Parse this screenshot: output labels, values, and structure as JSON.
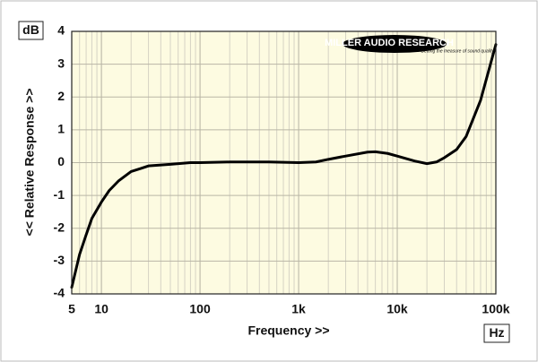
{
  "chart_data": {
    "type": "line",
    "x_label": "Frequency >>",
    "y_label": "<< Relative Response >>",
    "y_unit": "dB",
    "x_unit": "Hz",
    "logo": "MILLER AUDIO RESEARCH",
    "logo_tagline": "Getting the measure of sound quality",
    "xscale": "log",
    "grid": true,
    "color": "#000000",
    "xlim": [
      5,
      100000
    ],
    "xticks": [
      5,
      10,
      100,
      {
        "value": 1000,
        "label": "1k"
      },
      {
        "value": 10000,
        "label": "10k"
      },
      {
        "value": 100000,
        "label": "100k"
      }
    ],
    "ylim": [
      -4,
      4
    ],
    "yticks": [
      -4,
      -3,
      -2,
      -1,
      0,
      1,
      2,
      3,
      4
    ],
    "x": [
      5,
      6,
      7,
      8,
      10,
      12,
      15,
      20,
      25,
      30,
      50,
      80,
      100,
      200,
      500,
      1000,
      1500,
      2000,
      3000,
      5000,
      6000,
      8000,
      10000,
      15000,
      20000,
      25000,
      30000,
      40000,
      50000,
      70000,
      100000
    ],
    "values": [
      -3.8,
      -2.8,
      -2.2,
      -1.7,
      -1.2,
      -0.85,
      -0.55,
      -0.27,
      -0.18,
      -0.1,
      -0.05,
      0,
      0,
      0.02,
      0.02,
      0,
      0.02,
      0.1,
      0.2,
      0.32,
      0.33,
      0.28,
      0.2,
      0.05,
      -0.03,
      0.02,
      0.15,
      0.4,
      0.8,
      1.9,
      3.6
    ]
  }
}
